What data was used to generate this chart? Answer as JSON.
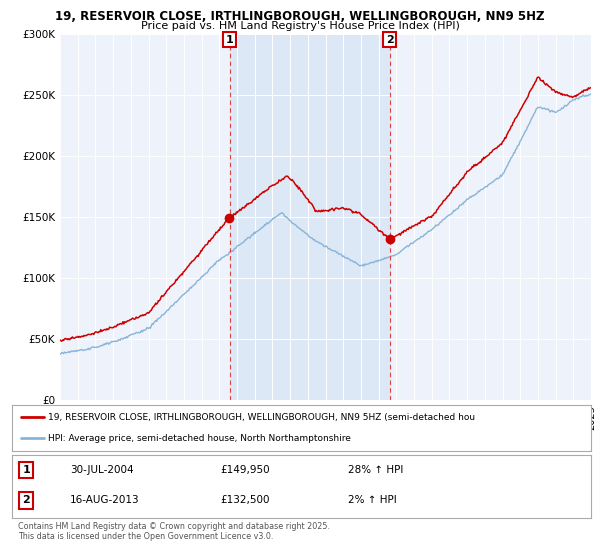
{
  "title_line1": "19, RESERVOIR CLOSE, IRTHLINGBOROUGH, WELLINGBOROUGH, NN9 5HZ",
  "title_line2": "Price paid vs. HM Land Registry's House Price Index (HPI)",
  "background_color": "#ffffff",
  "plot_bg_color": "#eef3fb",
  "x_start_year": 1995,
  "x_end_year": 2025,
  "y_min": 0,
  "y_max": 300000,
  "y_ticks": [
    0,
    50000,
    100000,
    150000,
    200000,
    250000,
    300000
  ],
  "y_tick_labels": [
    "£0",
    "£50K",
    "£100K",
    "£150K",
    "£200K",
    "£250K",
    "£300K"
  ],
  "sale1_year": 2004.58,
  "sale1_price": 149950,
  "sale1_label": "1",
  "sale1_date": "30-JUL-2004",
  "sale1_hpi": "28% ↑ HPI",
  "sale2_year": 2013.62,
  "sale2_price": 132500,
  "sale2_label": "2",
  "sale2_date": "16-AUG-2013",
  "sale2_hpi": "2% ↑ HPI",
  "red_line_color": "#cc0000",
  "blue_line_color": "#88b4d8",
  "vline_color": "#dd4444",
  "shade_color": "#dce8f5",
  "legend1_text": "19, RESERVOIR CLOSE, IRTHLINGBOROUGH, WELLINGBOROUGH, NN9 5HZ (semi-detached hou",
  "legend2_text": "HPI: Average price, semi-detached house, North Northamptonshire",
  "footer_text": "Contains HM Land Registry data © Crown copyright and database right 2025.\nThis data is licensed under the Open Government Licence v3.0."
}
